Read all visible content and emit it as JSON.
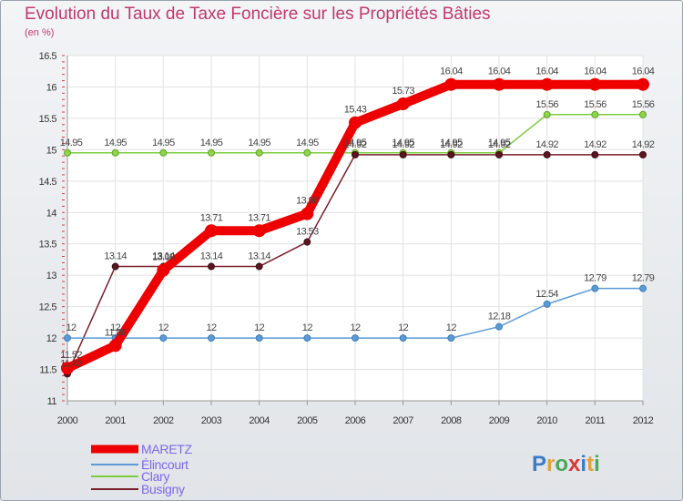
{
  "title": "Evolution du Taux de Taxe Foncière sur les Propriétés Bâties",
  "subtitle": "(en %)",
  "brand": {
    "text": "Proxiti",
    "letters": [
      {
        "ch": "P",
        "color": "#3a7cc9"
      },
      {
        "ch": "r",
        "color": "#e0a23a"
      },
      {
        "ch": "o",
        "color": "#49a85a"
      },
      {
        "ch": "x",
        "color": "#d43a3a"
      },
      {
        "ch": "i",
        "color": "#3a7cc9"
      },
      {
        "ch": "t",
        "color": "#e0a23a"
      },
      {
        "ch": "i",
        "color": "#49a85a"
      }
    ]
  },
  "chart_data": {
    "type": "line",
    "title": "Evolution du Taux de Taxe Foncière sur les Propriétés Bâties",
    "ylabel": "(en %)",
    "xlabel": "",
    "x": [
      "2000",
      "2001",
      "2002",
      "2003",
      "2004",
      "2005",
      "2006",
      "2007",
      "2008",
      "2009",
      "2010",
      "2011",
      "2012"
    ],
    "ylim": [
      11,
      16.5
    ],
    "yticks": [
      "11",
      "11.5",
      "12",
      "12.5",
      "13",
      "13.5",
      "14",
      "14.5",
      "15",
      "15.5",
      "16",
      "16.5"
    ],
    "grid": true,
    "legend_position": "bottom-left",
    "series": [
      {
        "name": "MARETZ",
        "color": "#ee0000",
        "values": [
          11.52,
          11.88,
          13.08,
          13.71,
          13.71,
          13.98,
          15.43,
          15.73,
          16.04,
          16.04,
          16.04,
          16.04,
          16.04
        ],
        "labels": [
          "11.52",
          "11.88",
          "13.08",
          "13.71",
          "13.71",
          "13.98",
          "15.43",
          "15.73",
          "16.04",
          "16.04",
          "16.04",
          "16.04",
          "16.04"
        ]
      },
      {
        "name": "Élincourt",
        "color": "#5b9bd5",
        "values": [
          12,
          12,
          12,
          12,
          12,
          12,
          12,
          12,
          12,
          12.18,
          12.54,
          12.79,
          12.79
        ],
        "labels": [
          "12",
          "12",
          "12",
          "12",
          "12",
          "12",
          "12",
          "12",
          "12",
          "12.18",
          "12.54",
          "12.79",
          "12.79"
        ]
      },
      {
        "name": "Clary",
        "color": "#7ccd3c",
        "values": [
          14.95,
          14.95,
          14.95,
          14.95,
          14.95,
          14.95,
          14.95,
          14.95,
          14.95,
          14.95,
          15.56,
          15.56,
          15.56
        ],
        "labels": [
          "14.95",
          "14.95",
          "14.95",
          "14.95",
          "14.95",
          "14.95",
          "14.95",
          "14.95",
          "14.95",
          "14.95",
          "15.56",
          "15.56",
          "15.56"
        ]
      },
      {
        "name": "Busigny",
        "color": "#7a1f2b",
        "values": [
          11.43,
          13.14,
          13.14,
          13.14,
          13.14,
          13.53,
          14.92,
          14.92,
          14.92,
          14.92,
          14.92,
          14.92,
          14.92
        ],
        "labels": [
          "11.43",
          "13.14",
          "13.14",
          "13.14",
          "13.14",
          "13.53",
          "14.92",
          "14.92",
          "14.92",
          "14.92",
          "14.92",
          "14.92",
          "14.92"
        ]
      }
    ]
  }
}
